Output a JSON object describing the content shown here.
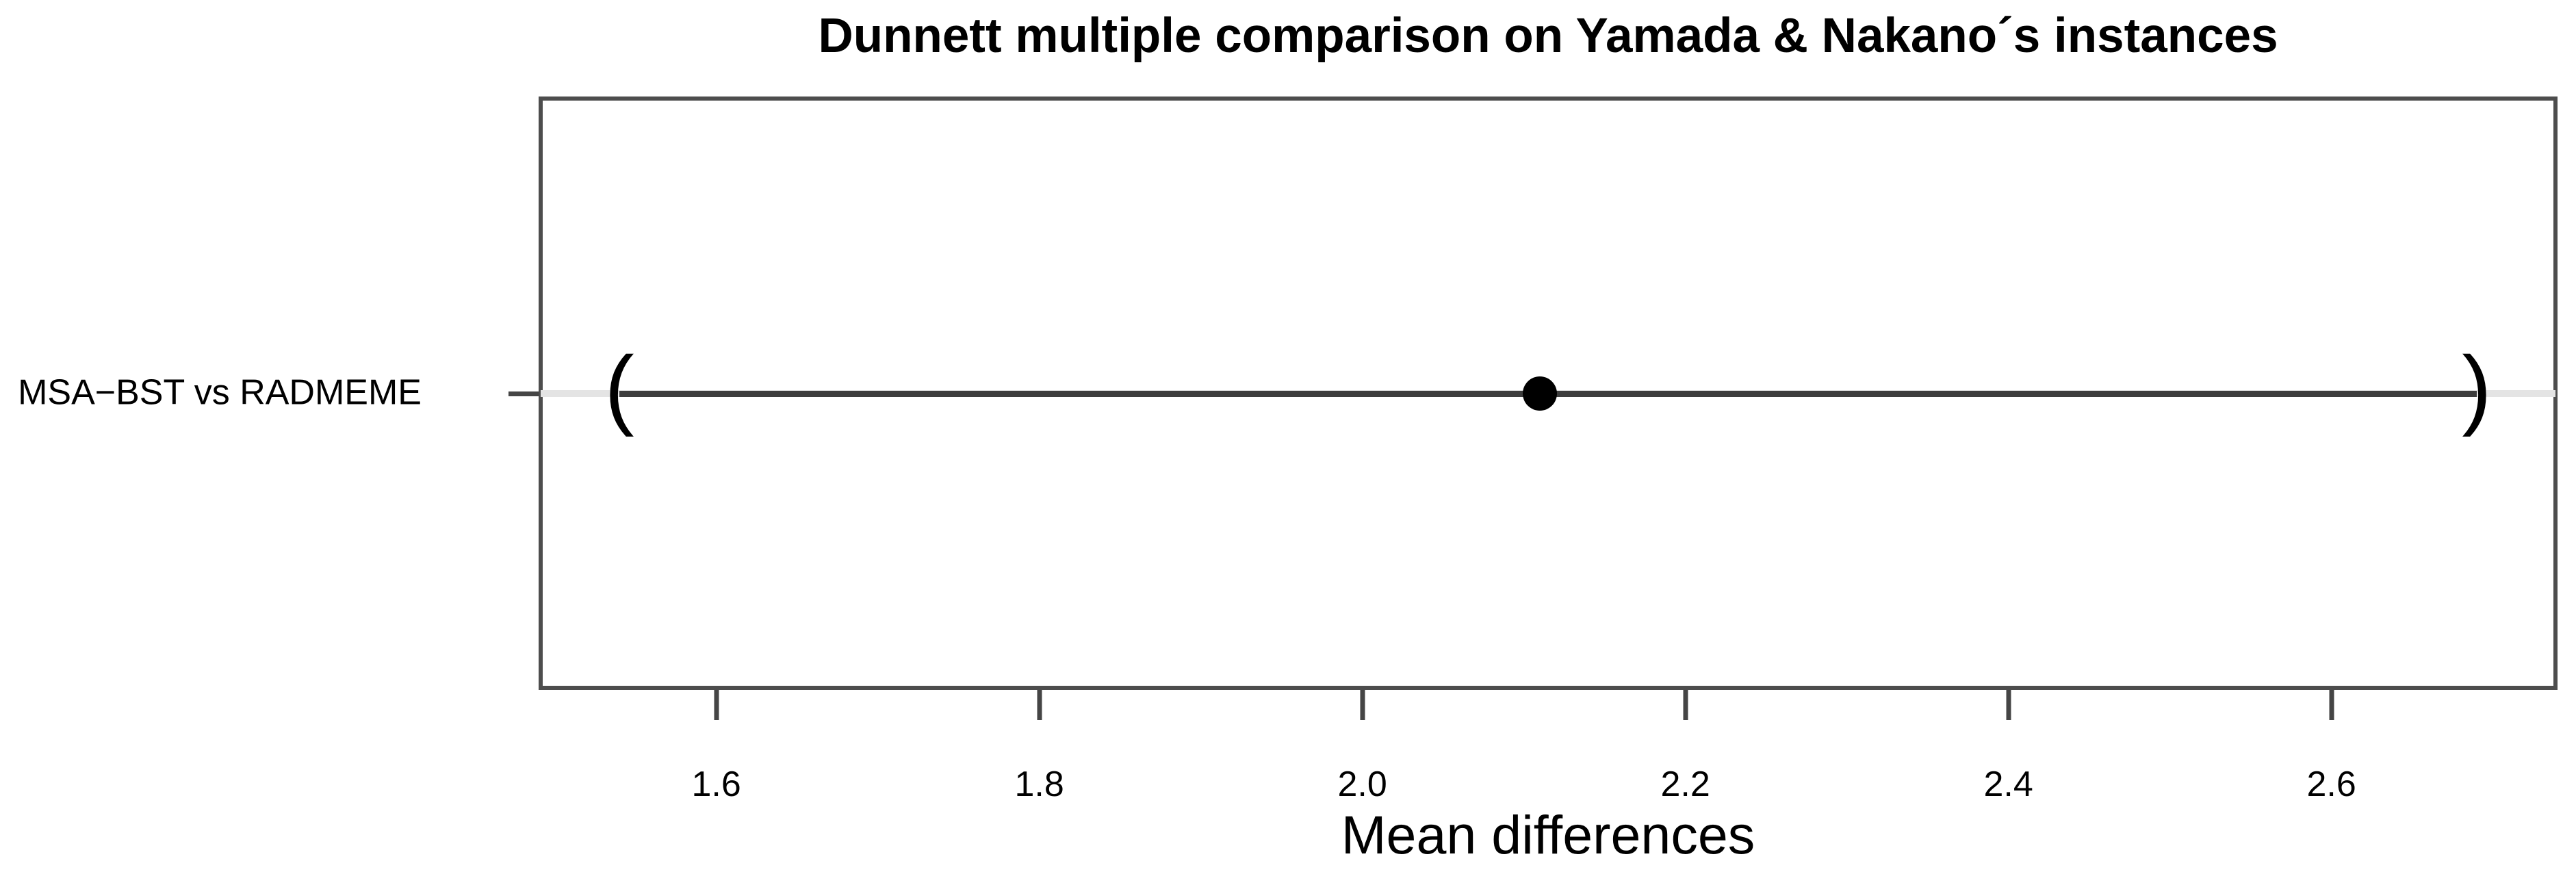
{
  "chart_data": {
    "type": "scatter",
    "subtype": "dunnett-confidence-interval-plot",
    "title": "Dunnett multiple comparison on Yamada & Nakano´s instances",
    "xlabel": "Mean differences",
    "ylabel": "",
    "comparisons": [
      {
        "label": "MSA−BST vs RADMEME",
        "estimate": 2.11,
        "ci_lower": 1.54,
        "ci_upper": 2.69
      }
    ],
    "x_tick_values": [
      1.6,
      1.8,
      2.0,
      2.2,
      2.4,
      2.6
    ],
    "x_tick_labels": [
      "1.6",
      "1.8",
      "2.0",
      "2.2",
      "2.4",
      "2.6"
    ],
    "xlim": [
      1.49,
      2.74
    ],
    "grid": false,
    "legend": false,
    "marker": "filled-circle",
    "interval_glyphs": [
      "(",
      ")"
    ],
    "colors": {
      "frame": "#4d4d4d",
      "tick": "#454545",
      "interval_line": "#3d3d3d",
      "marker": "#000000",
      "guide_line": "#e4e4e4",
      "text": "#000000"
    }
  }
}
